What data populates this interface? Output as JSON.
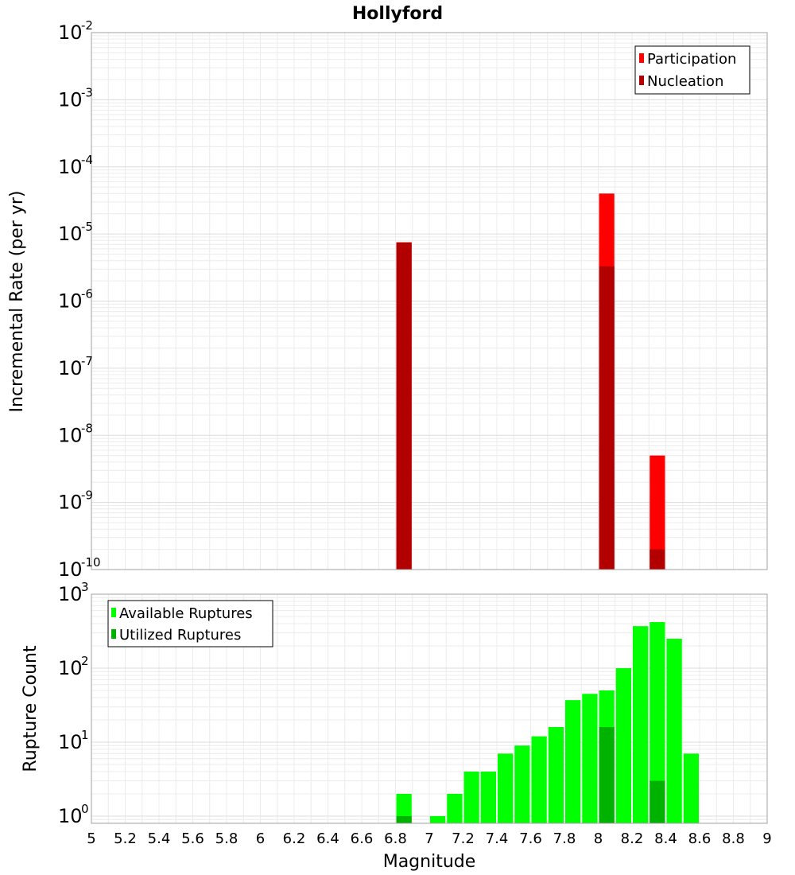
{
  "chart_data": [
    {
      "type": "bar",
      "title": "Hollyford",
      "xlabel": "",
      "ylabel": "Incremental Rate (per yr)",
      "yscale": "log",
      "xlim": [
        5,
        9
      ],
      "ylim": [
        1e-10,
        0.01
      ],
      "grid": true,
      "legend_position": "top-right",
      "y_ticks": [
        {
          "base": "10",
          "exp": "-2",
          "value": 0.01
        },
        {
          "base": "10",
          "exp": "-3",
          "value": 0.001
        },
        {
          "base": "10",
          "exp": "-4",
          "value": 0.0001
        },
        {
          "base": "10",
          "exp": "-5",
          "value": 1e-05
        },
        {
          "base": "10",
          "exp": "-6",
          "value": 1e-06
        },
        {
          "base": "10",
          "exp": "-7",
          "value": 1e-07
        },
        {
          "base": "10",
          "exp": "-8",
          "value": 1e-08
        },
        {
          "base": "10",
          "exp": "-9",
          "value": 1e-09
        },
        {
          "base": "10",
          "exp": "-10",
          "value": 1e-10
        }
      ],
      "series": [
        {
          "name": "Participation",
          "color": "#ff0000",
          "x": [
            6.85,
            8.05,
            8.35
          ],
          "values": [
            7.5e-06,
            4e-05,
            5e-09
          ]
        },
        {
          "name": "Nucleation",
          "color": "#b20000",
          "x": [
            6.85,
            8.05,
            8.35
          ],
          "values": [
            7.5e-06,
            3.3e-06,
            2e-10
          ]
        }
      ]
    },
    {
      "type": "bar",
      "title": "",
      "xlabel": "Magnitude",
      "ylabel": "Rupture Count",
      "yscale": "log",
      "xlim": [
        5,
        9
      ],
      "ylim": [
        0.8,
        1000
      ],
      "grid": true,
      "legend_position": "top-left",
      "x_ticks": [
        "5",
        "5.2",
        "5.4",
        "5.6",
        "5.8",
        "6",
        "6.2",
        "6.4",
        "6.6",
        "6.8",
        "7",
        "7.2",
        "7.4",
        "7.6",
        "7.8",
        "8",
        "8.2",
        "8.4",
        "8.6",
        "8.8",
        "9"
      ],
      "y_ticks": [
        {
          "base": "10",
          "exp": "3",
          "value": 1000
        },
        {
          "base": "10",
          "exp": "2",
          "value": 100
        },
        {
          "base": "10",
          "exp": "1",
          "value": 10
        },
        {
          "base": "10",
          "exp": "0",
          "value": 1
        }
      ],
      "series": [
        {
          "name": "Available Ruptures",
          "color": "#00ff00",
          "x": [
            6.85,
            7.05,
            7.15,
            7.25,
            7.35,
            7.45,
            7.55,
            7.65,
            7.75,
            7.85,
            7.95,
            8.05,
            8.15,
            8.25,
            8.35,
            8.45,
            8.55
          ],
          "values": [
            2,
            1,
            2,
            4,
            4,
            7,
            9,
            12,
            16,
            37,
            45,
            50,
            100,
            370,
            420,
            250,
            7
          ]
        },
        {
          "name": "Utilized Ruptures",
          "color": "#00b200",
          "x": [
            6.85,
            8.05,
            8.35
          ],
          "values": [
            1,
            16,
            3
          ]
        }
      ]
    }
  ]
}
